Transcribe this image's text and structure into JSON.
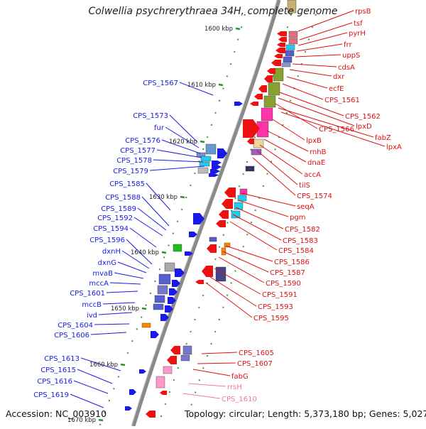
{
  "title": "Colwellia psychrerythraea 34H, complete genome",
  "footer": {
    "accession": "Accession: NC_003910",
    "summary": "Topology: circular; Length: 5,373,180 bp; Genes: 5,027"
  },
  "colors": {
    "left_label": "#1a1ae6",
    "right_label": "#dd1111",
    "pink_label": "#f07a9e",
    "backbone": "#8a8a8a",
    "tick": "#2f8f2f"
  },
  "kbp_ticks": [
    {
      "label": "1600 kbp"
    },
    {
      "label": "1610 kbp"
    },
    {
      "label": "1620 kbp"
    },
    {
      "label": "1630 kbp"
    },
    {
      "label": "1640 kbp"
    },
    {
      "label": "1650 kbp"
    },
    {
      "label": "1660 kbp"
    },
    {
      "label": "1670 kbp"
    }
  ],
  "left_genes": [
    {
      "label": "CPS_1567"
    },
    {
      "label": "CPS_1573"
    },
    {
      "label": "fur"
    },
    {
      "label": "CPS_1576"
    },
    {
      "label": "CPS_1577"
    },
    {
      "label": "CPS_1578"
    },
    {
      "label": "CPS_1579"
    },
    {
      "label": "CPS_1585"
    },
    {
      "label": "CPS_1588"
    },
    {
      "label": "CPS_1589"
    },
    {
      "label": "CPS_1592"
    },
    {
      "label": "CPS_1594"
    },
    {
      "label": "CPS_1596"
    },
    {
      "label": "dxnH"
    },
    {
      "label": "dxnG"
    },
    {
      "label": "mvaB"
    },
    {
      "label": "mccA"
    },
    {
      "label": "CPS_1601"
    },
    {
      "label": "mccB"
    },
    {
      "label": "ivd"
    },
    {
      "label": "CPS_1604"
    },
    {
      "label": "CPS_1606"
    },
    {
      "label": "CPS_1613"
    },
    {
      "label": "CPS_1615"
    },
    {
      "label": "CPS_1616"
    },
    {
      "label": "CPS_1619"
    }
  ],
  "right_genes": [
    {
      "label": "rpsB"
    },
    {
      "label": "tsf"
    },
    {
      "label": "pyrH"
    },
    {
      "label": "frr"
    },
    {
      "label": "uppS"
    },
    {
      "label": "cdsA"
    },
    {
      "label": "dxr"
    },
    {
      "label": "ecfE"
    },
    {
      "label": "CPS_1561"
    },
    {
      "label": "CPS_1562"
    },
    {
      "label": "lpxD"
    },
    {
      "label": "CPS_1566"
    },
    {
      "label": "fabZ"
    },
    {
      "label": "lpxA"
    },
    {
      "label": "lpxB"
    },
    {
      "label": "rnhB"
    },
    {
      "label": "dnaE"
    },
    {
      "label": "accA"
    },
    {
      "label": "tilS"
    },
    {
      "label": "CPS_1574"
    },
    {
      "label": "seqA"
    },
    {
      "label": "pgm"
    },
    {
      "label": "CPS_1582"
    },
    {
      "label": "CPS_1583"
    },
    {
      "label": "CPS_1584"
    },
    {
      "label": "CPS_1586"
    },
    {
      "label": "CPS_1587"
    },
    {
      "label": "CPS_1590"
    },
    {
      "label": "CPS_1591"
    },
    {
      "label": "CPS_1593"
    },
    {
      "label": "CPS_1595"
    },
    {
      "label": "CPS_1605"
    },
    {
      "label": "CPS_1607"
    },
    {
      "label": "fabG"
    },
    {
      "label": "rrsH",
      "pink": true
    },
    {
      "label": "CPS_1610",
      "pink": true
    }
  ]
}
